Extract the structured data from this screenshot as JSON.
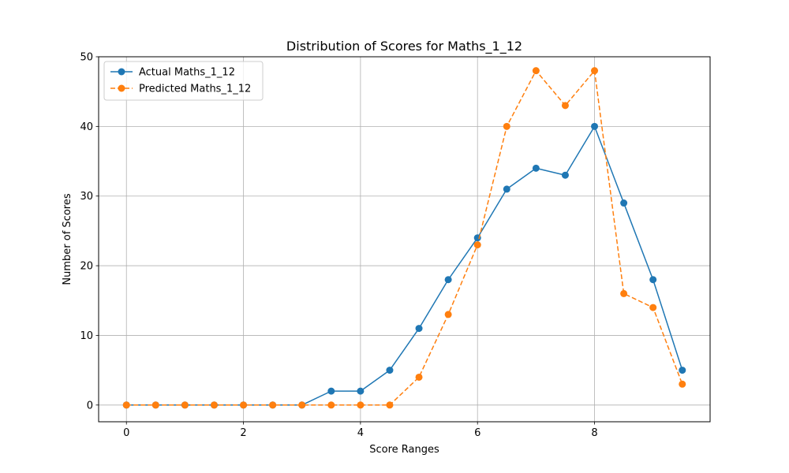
{
  "chart_data": {
    "type": "line",
    "title": "Distribution of Scores for Maths_1_12",
    "xlabel": "Score Ranges",
    "ylabel": "Number of Scores",
    "xlim": [
      -0.475,
      9.975
    ],
    "ylim": [
      -2.4,
      50
    ],
    "xticks": [
      0,
      2,
      4,
      6,
      8
    ],
    "yticks": [
      0,
      10,
      20,
      30,
      40,
      50
    ],
    "grid": true,
    "legend_position": "top-left",
    "x": [
      0,
      0.5,
      1,
      1.5,
      2,
      2.5,
      3,
      3.5,
      4,
      4.5,
      5,
      5.5,
      6,
      6.5,
      7,
      7.5,
      8,
      8.5,
      9,
      9.5
    ],
    "series": [
      {
        "name": "Actual Maths_1_12",
        "color": "#1f77b4",
        "line_style": "solid",
        "marker": "circle",
        "values": [
          0,
          0,
          0,
          0,
          0,
          0,
          0,
          2,
          2,
          5,
          11,
          18,
          24,
          31,
          34,
          33,
          40,
          29,
          18,
          5
        ]
      },
      {
        "name": "Predicted Maths_1_12",
        "color": "#ff7f0e",
        "line_style": "dashed",
        "marker": "circle",
        "values": [
          0,
          0,
          0,
          0,
          0,
          0,
          0,
          0,
          0,
          0,
          4,
          13,
          23,
          40,
          48,
          43,
          48,
          16,
          14,
          3
        ]
      }
    ]
  }
}
